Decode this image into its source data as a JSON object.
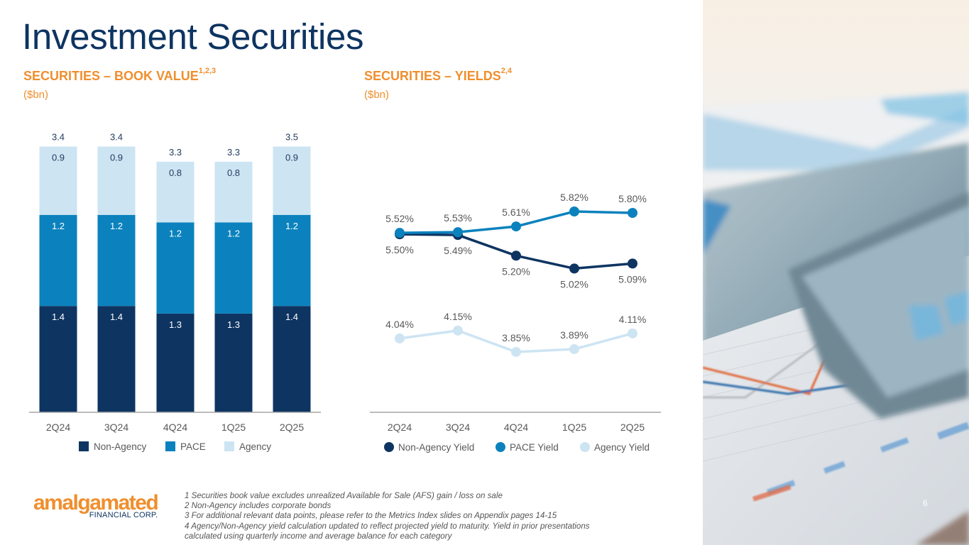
{
  "slide": {
    "title": "Investment Securities",
    "page_number": "6"
  },
  "left_section": {
    "title": "SECURITIES – BOOK VALUE",
    "superscript": "1,2,3",
    "unit": "($bn)"
  },
  "right_section": {
    "title": "SECURITIES – YIELDS",
    "superscript": "2,4",
    "unit": "($bn)"
  },
  "chart_data": [
    {
      "type": "bar",
      "stacked": true,
      "title": "SECURITIES – BOOK VALUE",
      "unit": "$bn",
      "categories": [
        "2Q24",
        "3Q24",
        "4Q24",
        "1Q25",
        "2Q25"
      ],
      "series": [
        {
          "name": "Non-Agency",
          "color": "#0e3461",
          "values": [
            1.4,
            1.4,
            1.3,
            1.3,
            1.4
          ],
          "labels": [
            "1.4",
            "1.4",
            "1.3",
            "1.3",
            "1.4"
          ]
        },
        {
          "name": "PACE",
          "color": "#0b82bd",
          "values": [
            1.2,
            1.2,
            1.2,
            1.2,
            1.2
          ],
          "labels": [
            "1.2",
            "1.2",
            "1.2",
            "1.2",
            "1.2"
          ]
        },
        {
          "name": "Agency",
          "color": "#cde4f3",
          "values": [
            0.9,
            0.9,
            0.8,
            0.8,
            0.9
          ],
          "labels": [
            "0.9",
            "0.9",
            "0.8",
            "0.8",
            "0.9"
          ]
        }
      ],
      "totals": [
        3.4,
        3.4,
        3.3,
        3.3,
        3.5
      ],
      "total_labels": [
        "3.4",
        "3.4",
        "3.3",
        "3.3",
        "3.5"
      ],
      "legend": "bottom",
      "grid": false
    },
    {
      "type": "line",
      "title": "SECURITIES – YIELDS",
      "categories": [
        "2Q24",
        "3Q24",
        "4Q24",
        "1Q25",
        "2Q25"
      ],
      "series": [
        {
          "name": "Non-Agency Yield",
          "color": "#0e3461",
          "values": [
            5.5,
            5.49,
            5.2,
            5.02,
            5.09
          ],
          "labels": [
            "5.50%",
            "5.49%",
            "5.20%",
            "5.02%",
            "5.09%"
          ],
          "label_position": "below"
        },
        {
          "name": "PACE Yield",
          "color": "#0b82bd",
          "values": [
            5.52,
            5.53,
            5.61,
            5.82,
            5.8
          ],
          "labels": [
            "5.52%",
            "5.53%",
            "5.61%",
            "5.82%",
            "5.80%"
          ],
          "label_position": "above"
        },
        {
          "name": "Agency Yield",
          "color": "#cde4f3",
          "values": [
            4.04,
            4.15,
            3.85,
            3.89,
            4.11
          ],
          "labels": [
            "4.04%",
            "4.15%",
            "3.85%",
            "3.89%",
            "4.11%"
          ],
          "label_position": "above"
        }
      ],
      "legend": "bottom",
      "grid": false
    }
  ],
  "footnotes": [
    "1 Securities book value excludes unrealized Available for Sale (AFS) gain / loss on sale",
    "2 Non-Agency includes corporate bonds",
    "3 For additional relevant data points, please refer to the Metrics Index slides on Appendix pages 14-15",
    "4 Agency/Non-Agency yield calculation updated to reflect projected yield to maturity.  Yield in prior presentations",
    "calculated using quarterly income and average balance for each category"
  ],
  "logo": {
    "main": "amalgamated",
    "sub": "FINANCIAL CORP."
  },
  "photo": {
    "description": "blurred photo of tablet over printed financial line chart"
  }
}
